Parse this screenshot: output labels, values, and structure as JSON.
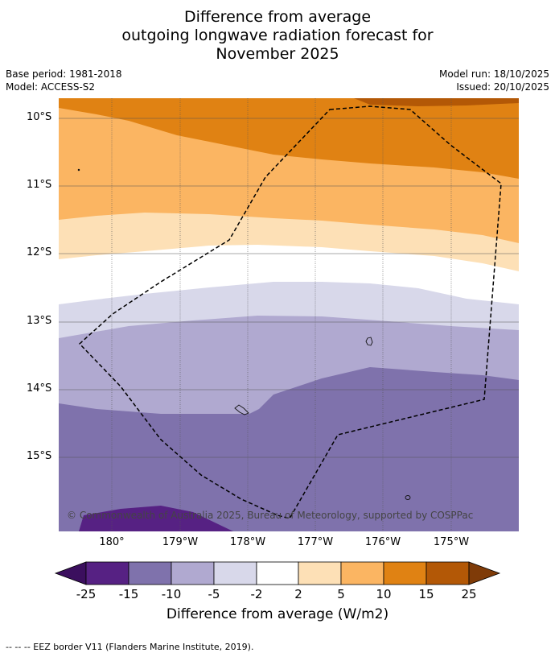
{
  "header": {
    "title_line1": "Difference from average",
    "title_line2": "outgoing longwave radiation forecast for",
    "title_line3": "November 2025",
    "base_period": "Base period: 1981-2018",
    "model": "Model: ACCESS-S2",
    "model_run": "Model run: 18/10/2025",
    "issued": "Issued: 20/10/2025"
  },
  "map": {
    "lat_labels": [
      "10°S",
      "11°S",
      "12°S",
      "13°S",
      "14°S",
      "15°S"
    ],
    "lon_labels": [
      "180°",
      "179°W",
      "178°W",
      "177°W",
      "176°W",
      "175°W"
    ],
    "copyright": "© Commonwealth of Australia 2025, Bureau of Meteorology, supported by COSPPac",
    "colors": {
      "p25_below": "#3b0f5e",
      "p15_25": "#562183",
      "p10_15": "#7f72ac",
      "p5_10": "#b0a9d0",
      "p2_5": "#d8d8ea",
      "neutral": "#ffffff",
      "o2_5": "#fde0b6",
      "o5_10": "#fbb562",
      "o10_15": "#e08213",
      "o15_25": "#b35806",
      "o25_above": "#7f3b08"
    }
  },
  "colorbar": {
    "ticks": [
      "-25",
      "-15",
      "-10",
      "-5",
      "-2",
      "2",
      "5",
      "10",
      "15",
      "25"
    ],
    "title": "Difference from average (W/m2)"
  },
  "footnote": "--  --  -- EEZ border V11 (Flanders Marine Institute, 2019)."
}
